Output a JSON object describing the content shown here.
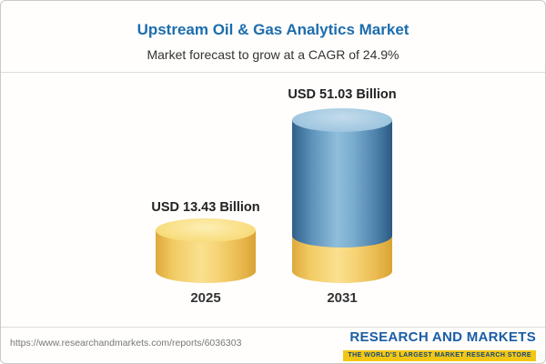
{
  "header": {
    "title": "Upstream Oil & Gas Analytics Market",
    "subtitle": "Market forecast to grow at a CAGR of 24.9%"
  },
  "chart_data": {
    "type": "bar",
    "title": "Upstream Oil & Gas Analytics Market",
    "subtitle": "Market forecast to grow at a CAGR of 24.9%",
    "cagr_percent": 24.9,
    "unit": "USD Billion",
    "categories": [
      "2025",
      "2031"
    ],
    "values": [
      13.43,
      51.03
    ],
    "value_labels": [
      "USD 13.43 Billion",
      "USD 51.03 Billion"
    ],
    "legend_position": "none",
    "grid": false,
    "colors": {
      "bar_2025": "#f2cb64",
      "bar_2031_growth": "#5e93ba",
      "bar_2031_base": "#f2cb64",
      "title_text": "#1d6dad"
    }
  },
  "footer": {
    "url": "https://www.researchandmarkets.com/reports/6036303",
    "logo_line1": "RESEARCH AND MARKETS",
    "logo_tagline": "THE WORLD'S LARGEST MARKET RESEARCH STORE"
  }
}
